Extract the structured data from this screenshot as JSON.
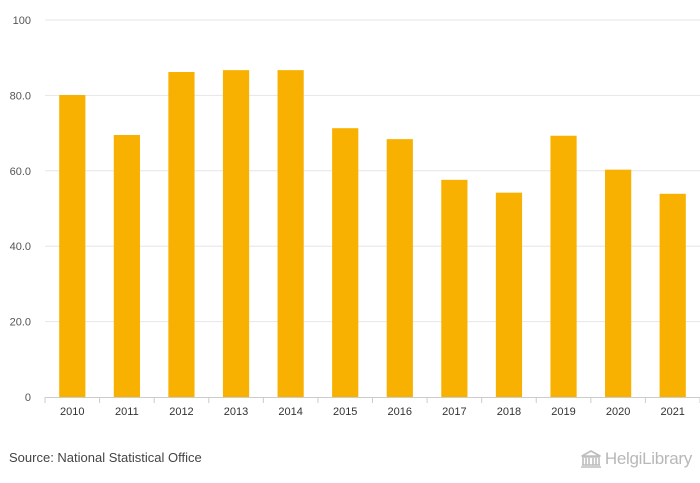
{
  "chart_data": {
    "type": "bar",
    "categories": [
      "2010",
      "2011",
      "2012",
      "2013",
      "2014",
      "2015",
      "2016",
      "2017",
      "2018",
      "2019",
      "2020",
      "2021"
    ],
    "values": [
      80.1,
      69.5,
      86.2,
      86.7,
      86.7,
      71.3,
      68.4,
      57.6,
      54.2,
      69.3,
      60.3,
      53.9
    ],
    "ylim": [
      0,
      100
    ],
    "yticks": [
      0,
      20,
      40,
      60,
      80,
      100
    ],
    "ytick_labels": [
      "0",
      "20.0",
      "40.0",
      "60.0",
      "80.0",
      "100"
    ],
    "title": "",
    "xlabel": "",
    "ylabel": "",
    "grid": true,
    "bar_color": "#F8B100",
    "grid_color": "#e6e6e6"
  },
  "footer": {
    "source": "Source: National Statistical Office",
    "logo_text": "HelgiLibrary",
    "logo_icon": "library-building-icon"
  }
}
